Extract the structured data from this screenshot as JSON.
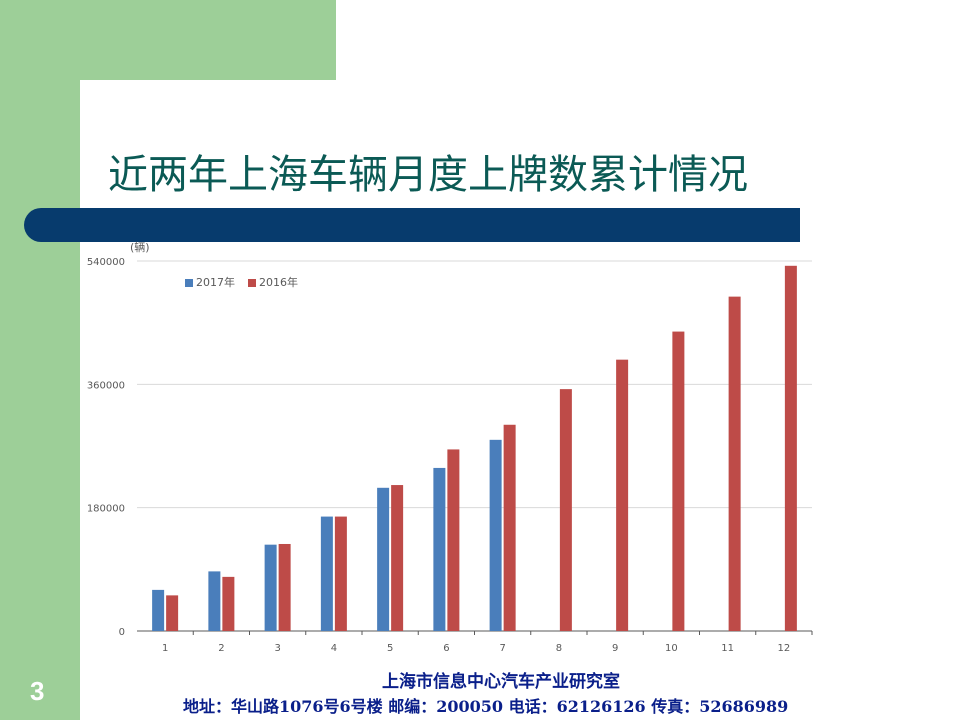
{
  "slide": {
    "title": "近两年上海车辆月度上牌数累计情况",
    "footer_org": "上海市信息中心汽车产业研究室",
    "footer_contact": "地址：华山路1076号6号楼 邮编：200050 电话：62126126 传真：52686989",
    "page_number": "3"
  },
  "chart_data": {
    "type": "bar",
    "ylabel": "(辆)",
    "xlabel": "",
    "categories": [
      "1",
      "2",
      "3",
      "4",
      "5",
      "6",
      "7",
      "8",
      "9",
      "10",
      "11",
      "12"
    ],
    "series": [
      {
        "name": "2017年",
        "color": "#4a7ebb",
        "values": [
          60000,
          87000,
          126000,
          167000,
          209000,
          238000,
          279000,
          null,
          null,
          null,
          null,
          null
        ]
      },
      {
        "name": "2016年",
        "color": "#be4b48",
        "values": [
          52000,
          79000,
          127000,
          167000,
          213000,
          265000,
          301000,
          353000,
          396000,
          437000,
          488000,
          533000
        ]
      }
    ],
    "yticks": [
      "0",
      "180000",
      "360000",
      "540000"
    ],
    "ylim": [
      0,
      540000
    ],
    "grid": true,
    "legend_position": "top-left"
  }
}
